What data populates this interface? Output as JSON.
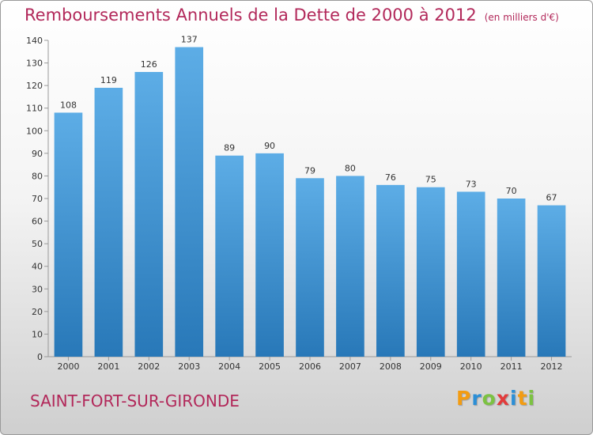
{
  "header": {
    "title": "Remboursements Annuels de la Dette de 2000 à 2012",
    "unit": "(en milliers d'€)"
  },
  "commune": "SAINT-FORT-SUR-GIRONDE",
  "logo": {
    "text": "Proxiti",
    "letters": [
      {
        "char": "P",
        "color": "#f39c12"
      },
      {
        "char": "r",
        "color": "#2c8fd6"
      },
      {
        "char": "o",
        "color": "#7cc242"
      },
      {
        "char": "x",
        "color": "#e23b3b"
      },
      {
        "char": "i",
        "color": "#2c8fd6"
      },
      {
        "char": "t",
        "color": "#f39c12"
      },
      {
        "char": "i",
        "color": "#7cc242"
      }
    ]
  },
  "chart_data": {
    "type": "bar",
    "title": "Remboursements Annuels de la Dette de 2000 à 2012",
    "categories": [
      "2000",
      "2001",
      "2002",
      "2003",
      "2004",
      "2005",
      "2006",
      "2007",
      "2008",
      "2009",
      "2010",
      "2011",
      "2012"
    ],
    "values": [
      108,
      119,
      126,
      137,
      89,
      90,
      79,
      80,
      76,
      75,
      73,
      70,
      67
    ],
    "ylim": [
      0,
      140
    ],
    "yticks": [
      0,
      10,
      20,
      30,
      40,
      50,
      60,
      70,
      80,
      90,
      100,
      110,
      120,
      130,
      140
    ],
    "grid": false,
    "xlabel": "",
    "ylabel": "",
    "bar_color_top": "#5dade6",
    "bar_color_bottom": "#2878b8",
    "title_color": "#b2285a"
  }
}
